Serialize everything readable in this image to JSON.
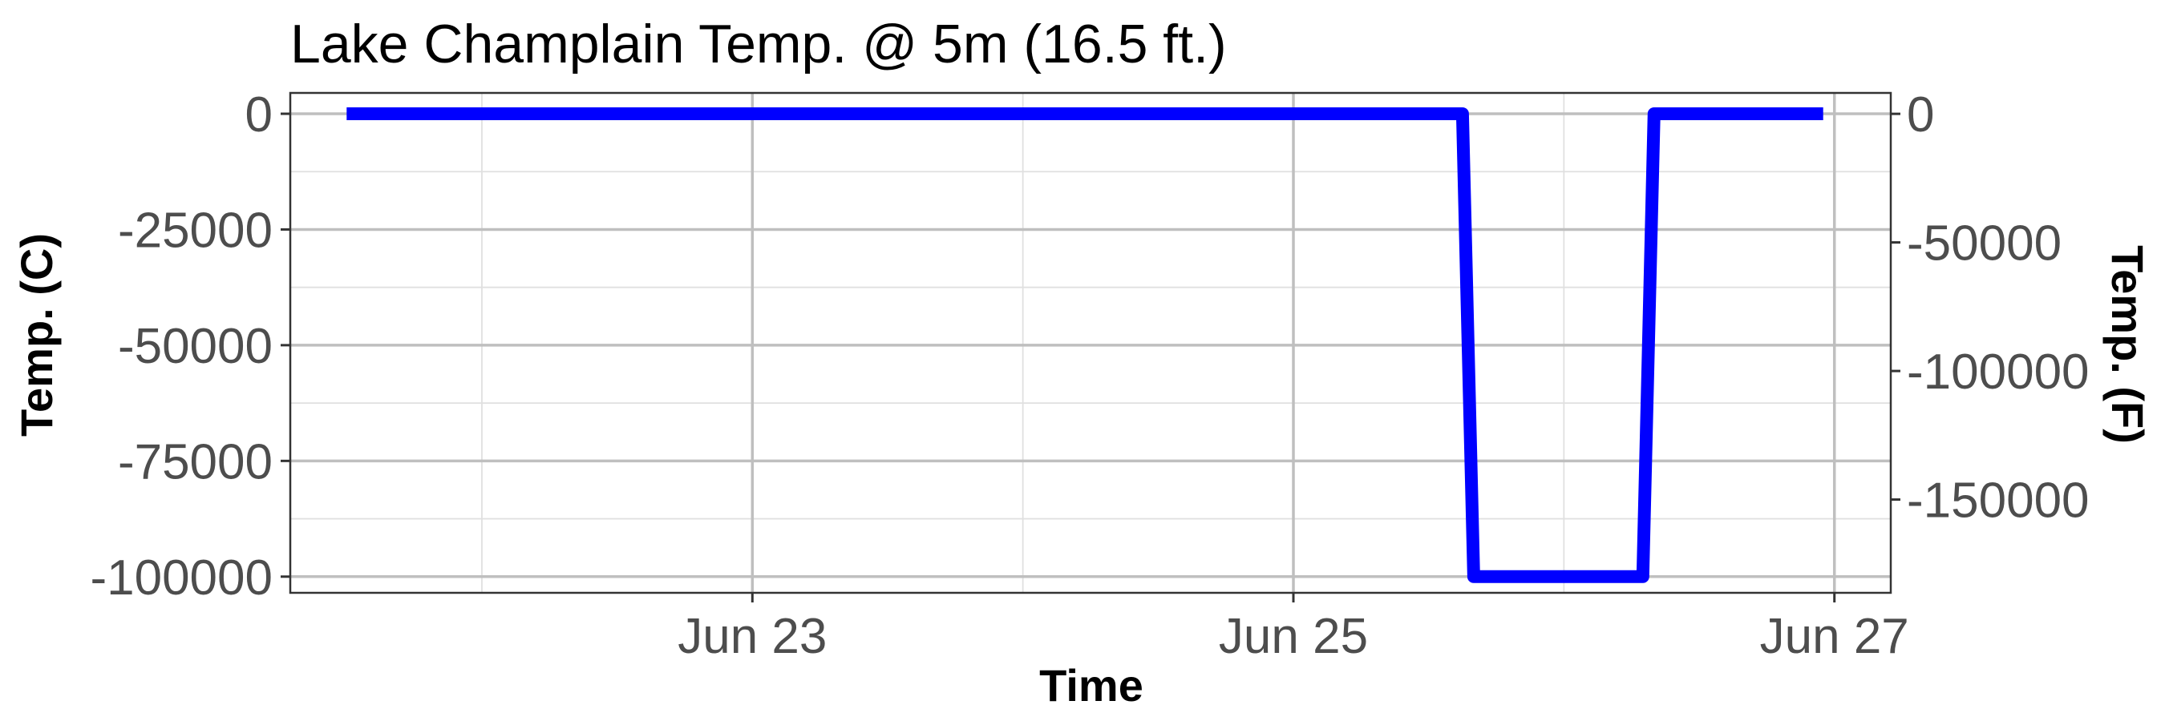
{
  "chart_data": {
    "type": "line",
    "title": "Lake Champlain Temp. @ 5m (16.5 ft.)",
    "xlabel": "Time",
    "ylabel": "Temp. (C)",
    "ylabel_right": "Temp. (F)",
    "x_ticks": [
      {
        "label": "Jun 23",
        "value": "2023-06-23"
      },
      {
        "label": "Jun 25",
        "value": "2023-06-25"
      },
      {
        "label": "Jun 27",
        "value": "2023-06-27"
      }
    ],
    "x_range": [
      "2023-06-21T07:00",
      "2023-06-27T05:00"
    ],
    "y_ticks": [
      {
        "label": "0",
        "value": 0
      },
      {
        "label": "-25000",
        "value": -25000
      },
      {
        "label": "-50000",
        "value": -50000
      },
      {
        "label": "-75000",
        "value": -75000
      },
      {
        "label": "-100000",
        "value": -100000
      }
    ],
    "y_ticks_right": [
      {
        "label": "0",
        "value": 0
      },
      {
        "label": "-50000",
        "value": -50000
      },
      {
        "label": "-100000",
        "value": -100000
      },
      {
        "label": "-150000",
        "value": -150000
      }
    ],
    "ylim": [
      -103500,
      4500
    ],
    "grid": true,
    "series": [
      {
        "color": "#0000ff",
        "points": [
          {
            "x": "2023-06-21T12:00",
            "y": 0
          },
          {
            "x": "2023-06-25T15:00",
            "y": 0
          },
          {
            "x": "2023-06-25T16:00",
            "y": -100000
          },
          {
            "x": "2023-06-26T07:00",
            "y": -100000
          },
          {
            "x": "2023-06-26T08:00",
            "y": 0
          },
          {
            "x": "2023-06-26T23:00",
            "y": 0
          }
        ]
      }
    ]
  }
}
